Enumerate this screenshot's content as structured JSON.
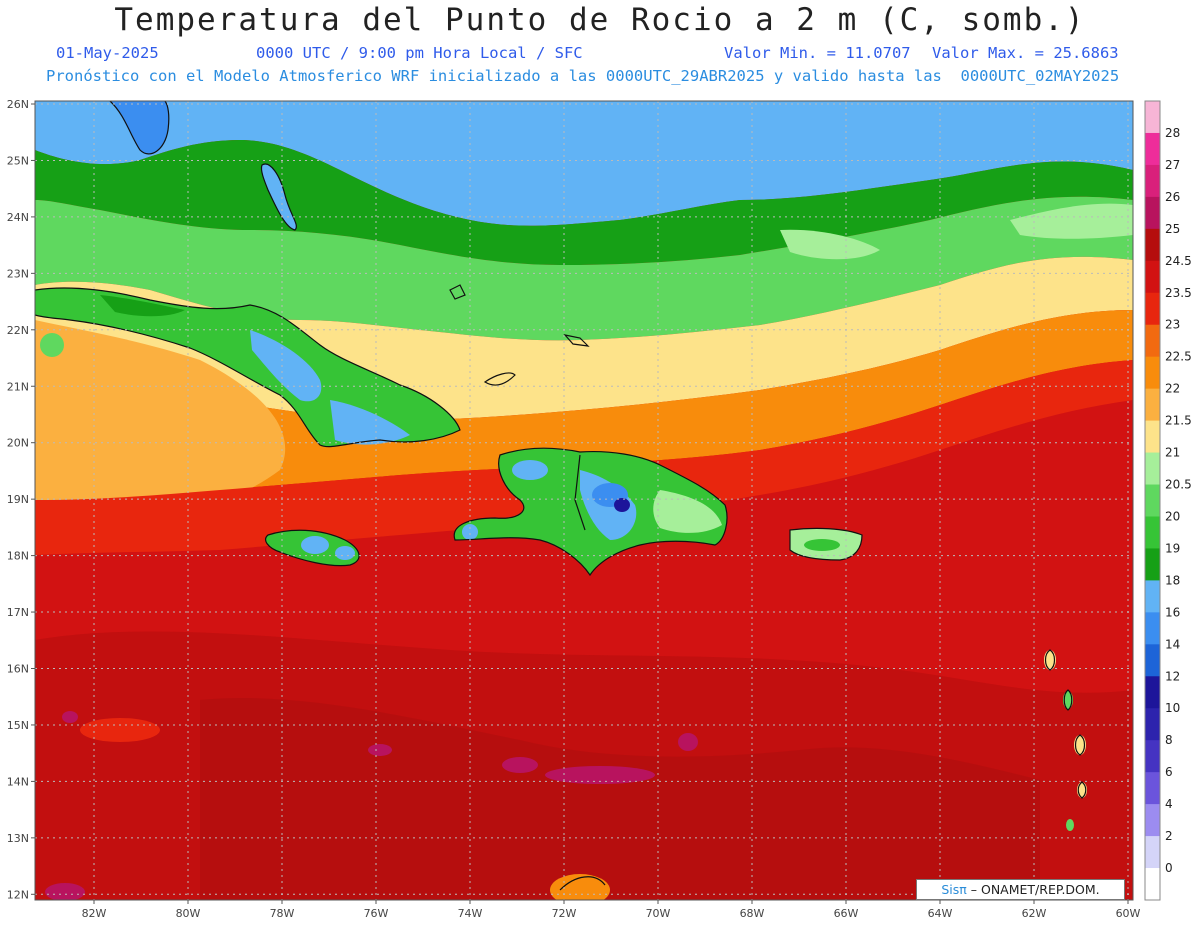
{
  "title": "Temperatura del Punto de Rocio a 2 m (C, somb.)",
  "date": "01-May-2025",
  "time": "0000 UTC / 9:00 pm Hora Local / SFC",
  "min": "Valor Min. = 11.0707",
  "max": "Valor Max. = 25.6863",
  "info": "Pronóstico con el Modelo Atmosferico WRF inicializado a las 0000UTC_29ABR2025 y valido hasta las  0000UTC_02MAY2025",
  "lat_labels": [
    "26N",
    "25N",
    "24N",
    "23N",
    "22N",
    "21N",
    "20N",
    "19N",
    "18N",
    "17N",
    "16N",
    "15N",
    "14N",
    "13N",
    "12N"
  ],
  "lon_labels": [
    "82W",
    "80W",
    "78W",
    "76W",
    "74W",
    "72W",
    "70W",
    "68W",
    "66W",
    "64W",
    "62W",
    "60W"
  ],
  "colorbar": {
    "labels": [
      "28",
      "27",
      "26",
      "25",
      "24.5",
      "23.5",
      "23",
      "22.5",
      "22",
      "21.5",
      "21",
      "20.5",
      "20",
      "19",
      "18",
      "16",
      "14",
      "12",
      "10",
      "8",
      "6",
      "4",
      "2",
      "0"
    ],
    "colors": [
      "#f7b5d6",
      "#ee2d9a",
      "#d9207b",
      "#b8135e",
      "#b50d0d",
      "#d21212",
      "#e8260e",
      "#f26a10",
      "#f88c0c",
      "#fbb040",
      "#fde38a",
      "#a6ef9a",
      "#5fd85f",
      "#36c436",
      "#16a016",
      "#61b3f5",
      "#3b8ef0",
      "#1d64d8",
      "#1d159a",
      "#2d23ad",
      "#4533c2",
      "#6b54dc",
      "#9c8cf0",
      "#d4d4f8",
      "#ffffff"
    ]
  },
  "credit": {
    "sis": "Sisπ",
    "rest": " – ONAMET/REP.DOM."
  }
}
